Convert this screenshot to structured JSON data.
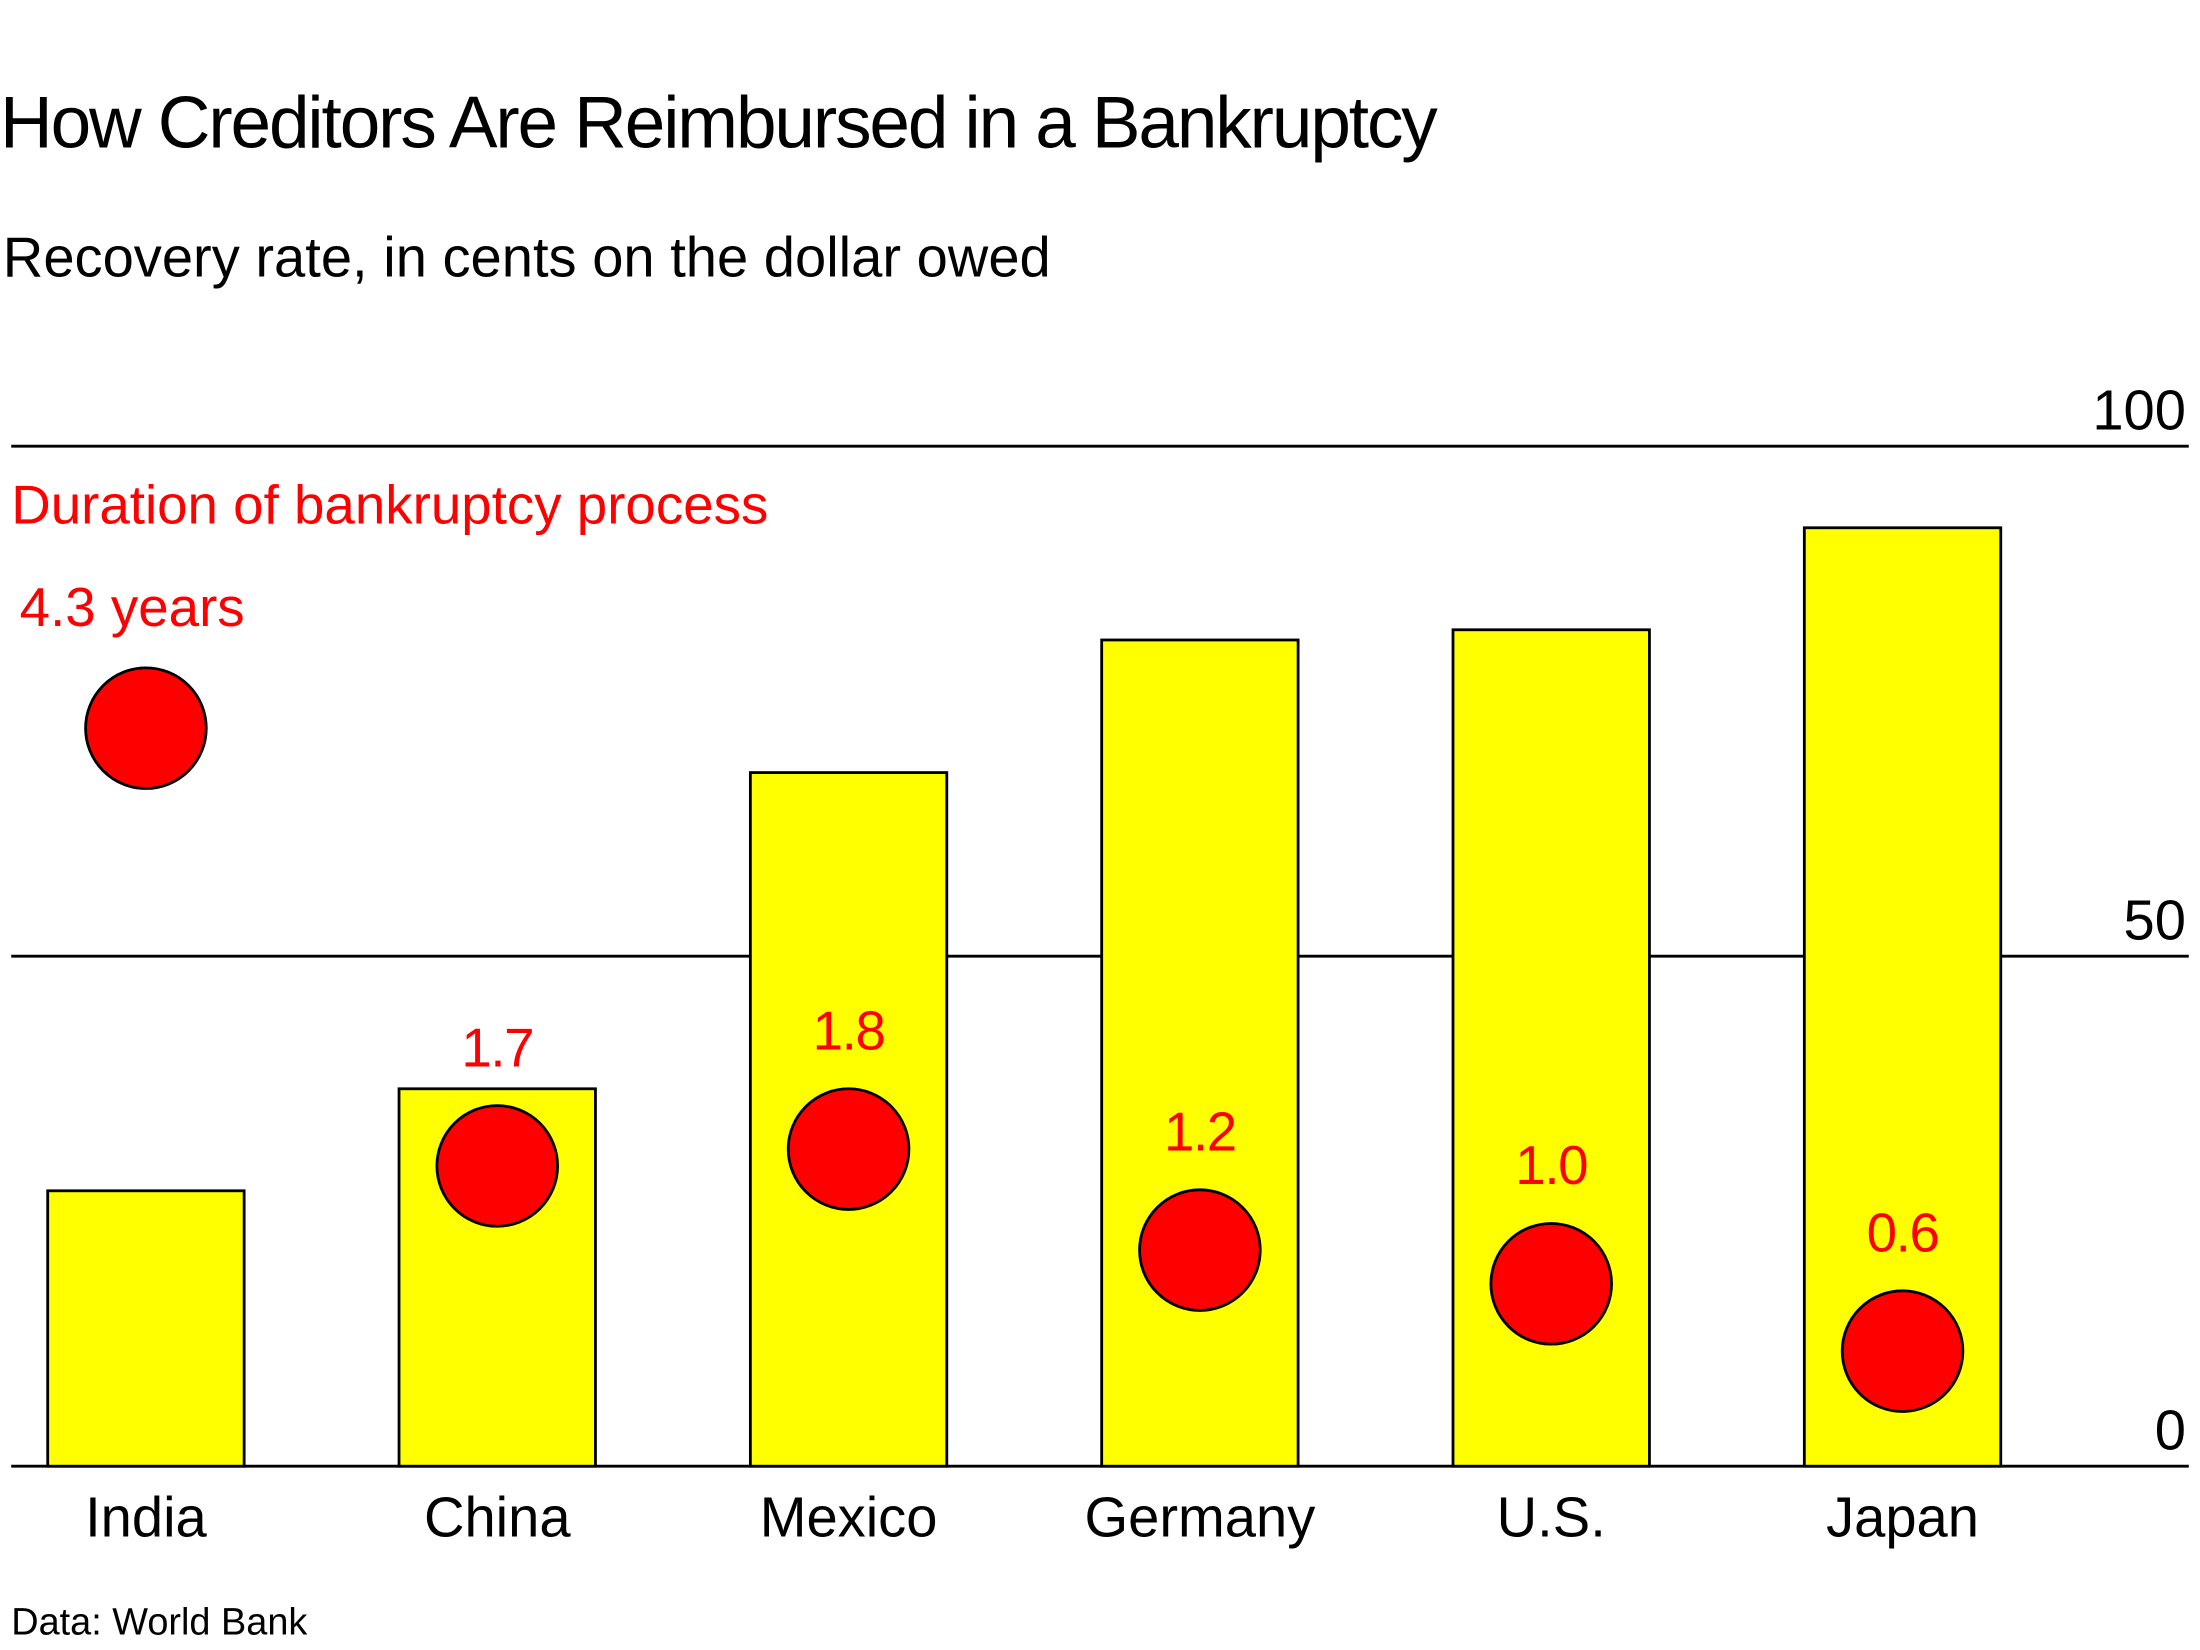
{
  "chart_data": {
    "type": "bar",
    "title": "How Creditors Are Reimbursed in a Bankruptcy",
    "subtitle": "Recovery rate, in cents on the dollar owed",
    "categories": [
      "India",
      "China",
      "Mexico",
      "Germany",
      "U.S.",
      "Japan"
    ],
    "values": [
      27,
      37,
      68,
      81,
      82,
      92
    ],
    "ylim": [
      0,
      100
    ],
    "yticks": [
      "0",
      "50",
      "100"
    ],
    "ytick_values": [
      0,
      50,
      100
    ],
    "overlay": {
      "name": "Duration of bankruptcy process",
      "unit_suffix": " years",
      "values": [
        4.3,
        1.7,
        1.8,
        1.2,
        1.0,
        0.6
      ],
      "labels": [
        "4.3 years",
        "1.7",
        "1.8",
        "1.2",
        "1.0",
        "0.6"
      ]
    },
    "source": "Data: World Bank",
    "colors": {
      "bar": "#ffff00",
      "dot": "#ff0000",
      "label": "#ff0000"
    }
  }
}
